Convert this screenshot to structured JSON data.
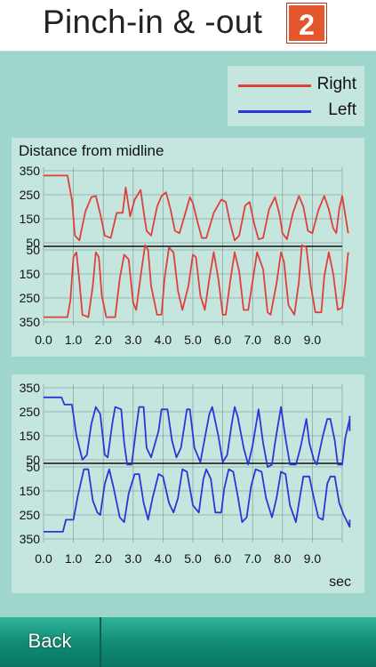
{
  "header": {
    "title": "Pinch-in & -out",
    "badge": "2"
  },
  "legend": {
    "right_label": "Right",
    "left_label": "Left",
    "right_color": "#e0403a",
    "left_color": "#2a36d8"
  },
  "footer": {
    "back_label": "Back"
  },
  "chart_data": [
    {
      "type": "line",
      "title": "Distance from midline",
      "xlabel": "",
      "y_ticks_top": [
        "350",
        "250",
        "150",
        "50"
      ],
      "y_ticks_bottom": [
        "50",
        "150",
        "250",
        "350"
      ],
      "x_ticks": [
        "0.0",
        "1.0",
        "2.0",
        "3.0",
        "4.0",
        "5.0",
        "6.0",
        "7.0",
        "8.0",
        "9.0"
      ],
      "xlim": [
        0,
        10
      ],
      "ylim": [
        -350,
        350
      ],
      "grid": true,
      "series": [
        {
          "name": "Right",
          "color": "#e0403a",
          "upper": [
            [
              0,
              330
            ],
            [
              0.8,
              330
            ],
            [
              0.95,
              230
            ],
            [
              1.05,
              80
            ],
            [
              1.2,
              60
            ],
            [
              1.4,
              180
            ],
            [
              1.6,
              240
            ],
            [
              1.75,
              245
            ],
            [
              1.9,
              170
            ],
            [
              2.05,
              80
            ],
            [
              2.25,
              70
            ],
            [
              2.45,
              175
            ],
            [
              2.65,
              175
            ],
            [
              2.75,
              280
            ],
            [
              2.9,
              160
            ],
            [
              3.05,
              230
            ],
            [
              3.25,
              270
            ],
            [
              3.35,
              180
            ],
            [
              3.45,
              100
            ],
            [
              3.6,
              80
            ],
            [
              3.8,
              200
            ],
            [
              3.95,
              245
            ],
            [
              4.1,
              260
            ],
            [
              4.25,
              190
            ],
            [
              4.4,
              100
            ],
            [
              4.55,
              90
            ],
            [
              4.75,
              175
            ],
            [
              4.9,
              240
            ],
            [
              5.0,
              215
            ],
            [
              5.15,
              140
            ],
            [
              5.3,
              70
            ],
            [
              5.45,
              70
            ],
            [
              5.7,
              175
            ],
            [
              5.95,
              230
            ],
            [
              6.1,
              220
            ],
            [
              6.25,
              130
            ],
            [
              6.4,
              60
            ],
            [
              6.55,
              80
            ],
            [
              6.75,
              205
            ],
            [
              6.9,
              220
            ],
            [
              7.05,
              130
            ],
            [
              7.2,
              65
            ],
            [
              7.35,
              70
            ],
            [
              7.55,
              190
            ],
            [
              7.75,
              240
            ],
            [
              7.9,
              170
            ],
            [
              8.0,
              90
            ],
            [
              8.15,
              65
            ],
            [
              8.35,
              175
            ],
            [
              8.55,
              245
            ],
            [
              8.7,
              200
            ],
            [
              8.85,
              100
            ],
            [
              9.0,
              90
            ],
            [
              9.2,
              185
            ],
            [
              9.4,
              245
            ],
            [
              9.55,
              190
            ],
            [
              9.7,
              110
            ],
            [
              9.8,
              90
            ],
            [
              9.9,
              190
            ],
            [
              10.0,
              245
            ],
            [
              10.15,
              130
            ],
            [
              10.2,
              90
            ]
          ],
          "lower": [
            [
              0,
              -330
            ],
            [
              0.8,
              -330
            ],
            [
              0.9,
              -260
            ],
            [
              1.0,
              -80
            ],
            [
              1.1,
              -60
            ],
            [
              1.2,
              -180
            ],
            [
              1.3,
              -320
            ],
            [
              1.5,
              -330
            ],
            [
              1.65,
              -200
            ],
            [
              1.75,
              -60
            ],
            [
              1.85,
              -80
            ],
            [
              1.95,
              -240
            ],
            [
              2.1,
              -330
            ],
            [
              2.4,
              -330
            ],
            [
              2.55,
              -170
            ],
            [
              2.7,
              -70
            ],
            [
              2.85,
              -90
            ],
            [
              3.0,
              -270
            ],
            [
              3.1,
              -300
            ],
            [
              3.25,
              -160
            ],
            [
              3.4,
              -30
            ],
            [
              3.5,
              -50
            ],
            [
              3.6,
              -200
            ],
            [
              3.8,
              -320
            ],
            [
              3.95,
              -320
            ],
            [
              4.05,
              -170
            ],
            [
              4.2,
              -40
            ],
            [
              4.35,
              -60
            ],
            [
              4.5,
              -220
            ],
            [
              4.65,
              -300
            ],
            [
              4.85,
              -200
            ],
            [
              5.0,
              -70
            ],
            [
              5.1,
              -80
            ],
            [
              5.25,
              -240
            ],
            [
              5.4,
              -300
            ],
            [
              5.55,
              -170
            ],
            [
              5.7,
              -60
            ],
            [
              5.85,
              -170
            ],
            [
              6.0,
              -320
            ],
            [
              6.1,
              -320
            ],
            [
              6.25,
              -180
            ],
            [
              6.4,
              -60
            ],
            [
              6.55,
              -140
            ],
            [
              6.7,
              -300
            ],
            [
              6.85,
              -300
            ],
            [
              7.0,
              -180
            ],
            [
              7.15,
              -60
            ],
            [
              7.35,
              -130
            ],
            [
              7.5,
              -310
            ],
            [
              7.6,
              -320
            ],
            [
              7.8,
              -190
            ],
            [
              7.95,
              -60
            ],
            [
              8.05,
              -100
            ],
            [
              8.2,
              -280
            ],
            [
              8.4,
              -320
            ],
            [
              8.55,
              -180
            ],
            [
              8.65,
              -30
            ],
            [
              8.8,
              -40
            ],
            [
              8.95,
              -200
            ],
            [
              9.1,
              -310
            ],
            [
              9.3,
              -310
            ],
            [
              9.4,
              -160
            ],
            [
              9.55,
              -60
            ],
            [
              9.7,
              -150
            ],
            [
              9.85,
              -300
            ],
            [
              10.0,
              -290
            ],
            [
              10.1,
              -190
            ],
            [
              10.2,
              -60
            ]
          ]
        }
      ]
    },
    {
      "type": "line",
      "title": "",
      "xlabel": "sec",
      "y_ticks_top": [
        "350",
        "250",
        "150",
        "50"
      ],
      "y_ticks_bottom": [
        "50",
        "150",
        "250",
        "350"
      ],
      "x_ticks": [
        "0.0",
        "1.0",
        "2.0",
        "3.0",
        "4.0",
        "5.0",
        "6.0",
        "7.0",
        "8.0",
        "9.0"
      ],
      "xlim": [
        0,
        10
      ],
      "ylim": [
        -350,
        350
      ],
      "grid": true,
      "series": [
        {
          "name": "Left",
          "color": "#2a36d8",
          "upper": [
            [
              0,
              310
            ],
            [
              0.6,
              310
            ],
            [
              0.7,
              280
            ],
            [
              0.95,
              280
            ],
            [
              1.1,
              150
            ],
            [
              1.3,
              50
            ],
            [
              1.45,
              70
            ],
            [
              1.6,
              200
            ],
            [
              1.75,
              270
            ],
            [
              1.9,
              240
            ],
            [
              2.05,
              70
            ],
            [
              2.15,
              60
            ],
            [
              2.3,
              200
            ],
            [
              2.4,
              270
            ],
            [
              2.6,
              260
            ],
            [
              2.7,
              120
            ],
            [
              2.8,
              30
            ],
            [
              2.95,
              30
            ],
            [
              3.1,
              180
            ],
            [
              3.2,
              270
            ],
            [
              3.35,
              270
            ],
            [
              3.45,
              100
            ],
            [
              3.6,
              60
            ],
            [
              3.85,
              170
            ],
            [
              3.95,
              260
            ],
            [
              4.15,
              260
            ],
            [
              4.3,
              130
            ],
            [
              4.45,
              60
            ],
            [
              4.6,
              100
            ],
            [
              4.8,
              260
            ],
            [
              4.9,
              260
            ],
            [
              5.05,
              100
            ],
            [
              5.25,
              40
            ],
            [
              5.4,
              140
            ],
            [
              5.55,
              240
            ],
            [
              5.65,
              270
            ],
            [
              5.85,
              150
            ],
            [
              6.0,
              40
            ],
            [
              6.15,
              70
            ],
            [
              6.3,
              200
            ],
            [
              6.4,
              270
            ],
            [
              6.5,
              230
            ],
            [
              6.7,
              100
            ],
            [
              6.85,
              30
            ],
            [
              7.0,
              110
            ],
            [
              7.2,
              260
            ],
            [
              7.35,
              120
            ],
            [
              7.5,
              20
            ],
            [
              7.65,
              30
            ],
            [
              7.75,
              120
            ],
            [
              7.95,
              270
            ],
            [
              8.1,
              140
            ],
            [
              8.25,
              30
            ],
            [
              8.45,
              30
            ],
            [
              8.6,
              100
            ],
            [
              8.8,
              220
            ],
            [
              8.9,
              120
            ],
            [
              9.05,
              50
            ],
            [
              9.15,
              30
            ],
            [
              9.35,
              150
            ],
            [
              9.5,
              220
            ],
            [
              9.6,
              220
            ],
            [
              9.75,
              130
            ],
            [
              9.85,
              30
            ],
            [
              10.0,
              30
            ],
            [
              10.1,
              140
            ],
            [
              10.25,
              220
            ],
            [
              10.4,
              230
            ],
            [
              10.5,
              170
            ]
          ],
          "lower": [
            [
              0,
              -320
            ],
            [
              0.65,
              -320
            ],
            [
              0.75,
              -270
            ],
            [
              1.0,
              -270
            ],
            [
              1.15,
              -170
            ],
            [
              1.35,
              -60
            ],
            [
              1.5,
              -60
            ],
            [
              1.65,
              -190
            ],
            [
              1.8,
              -240
            ],
            [
              1.9,
              -250
            ],
            [
              2.05,
              -120
            ],
            [
              2.2,
              -60
            ],
            [
              2.35,
              -140
            ],
            [
              2.55,
              -260
            ],
            [
              2.7,
              -280
            ],
            [
              2.85,
              -160
            ],
            [
              3.05,
              -80
            ],
            [
              3.2,
              -80
            ],
            [
              3.35,
              -200
            ],
            [
              3.5,
              -270
            ],
            [
              3.65,
              -180
            ],
            [
              3.85,
              -80
            ],
            [
              4.0,
              -90
            ],
            [
              4.2,
              -200
            ],
            [
              4.35,
              -240
            ],
            [
              4.5,
              -180
            ],
            [
              4.65,
              -60
            ],
            [
              4.8,
              -70
            ],
            [
              5.0,
              -210
            ],
            [
              5.2,
              -240
            ],
            [
              5.35,
              -100
            ],
            [
              5.45,
              -60
            ],
            [
              5.6,
              -100
            ],
            [
              5.75,
              -240
            ],
            [
              5.95,
              -240
            ],
            [
              6.05,
              -140
            ],
            [
              6.2,
              -60
            ],
            [
              6.35,
              -70
            ],
            [
              6.5,
              -170
            ],
            [
              6.65,
              -280
            ],
            [
              6.8,
              -260
            ],
            [
              6.95,
              -130
            ],
            [
              7.1,
              -60
            ],
            [
              7.3,
              -70
            ],
            [
              7.45,
              -180
            ],
            [
              7.65,
              -260
            ],
            [
              7.8,
              -180
            ],
            [
              7.95,
              -70
            ],
            [
              8.1,
              -80
            ],
            [
              8.25,
              -210
            ],
            [
              8.45,
              -280
            ],
            [
              8.55,
              -200
            ],
            [
              8.7,
              -90
            ],
            [
              8.9,
              -90
            ],
            [
              9.05,
              -180
            ],
            [
              9.2,
              -260
            ],
            [
              9.35,
              -270
            ],
            [
              9.5,
              -120
            ],
            [
              9.6,
              -90
            ],
            [
              9.75,
              -90
            ],
            [
              9.9,
              -200
            ],
            [
              10.05,
              -250
            ],
            [
              10.25,
              -300
            ],
            [
              10.35,
              -300
            ],
            [
              10.45,
              -270
            ]
          ]
        }
      ]
    }
  ]
}
